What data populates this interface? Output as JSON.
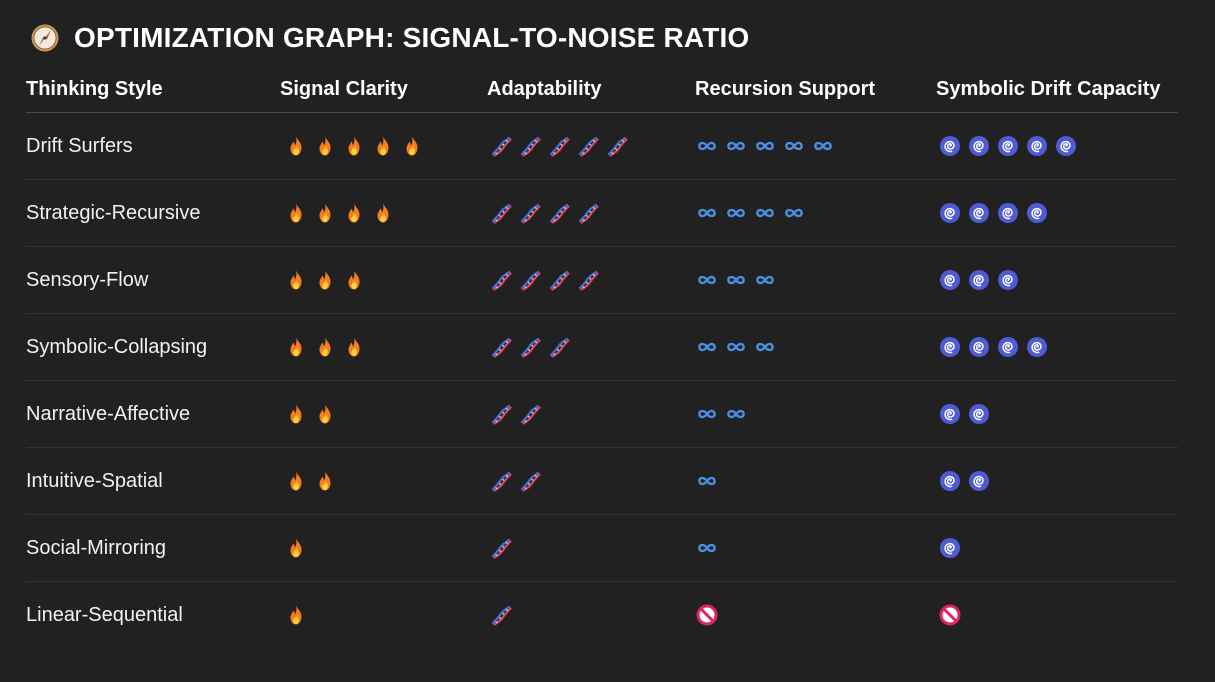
{
  "title": {
    "icon": "compass-icon",
    "text": "OPTIMIZATION GRAPH: SIGNAL-TO-NOISE RATIO"
  },
  "colors": {
    "background": "#212121",
    "text": "#f2f2f2",
    "infinity": "#4a90e2",
    "spiral": "#4f5bd5",
    "fire": "#f57c1f",
    "prohibited": "#e0245e"
  },
  "table": {
    "headers": [
      "Thinking Style",
      "Signal Clarity",
      "Adaptability",
      "Recursion Support",
      "Symbolic Drift Capacity"
    ],
    "icon_names": {
      "signal": "fire-icon",
      "adaptability": "dna-icon",
      "recursion": "infinity-icon",
      "drift": "spiral-icon",
      "none": "prohibited-icon"
    },
    "rows": [
      {
        "style": "Drift Surfers",
        "signal": 5,
        "adaptability": 5,
        "recursion": 5,
        "drift": 5
      },
      {
        "style": "Strategic-Recursive",
        "signal": 4,
        "adaptability": 4,
        "recursion": 4,
        "drift": 4
      },
      {
        "style": "Sensory-Flow",
        "signal": 3,
        "adaptability": 4,
        "recursion": 3,
        "drift": 3
      },
      {
        "style": "Symbolic-Collapsing",
        "signal": 3,
        "adaptability": 3,
        "recursion": 3,
        "drift": 4
      },
      {
        "style": "Narrative-Affective",
        "signal": 2,
        "adaptability": 2,
        "recursion": 2,
        "drift": 2
      },
      {
        "style": "Intuitive-Spatial",
        "signal": 2,
        "adaptability": 2,
        "recursion": 1,
        "drift": 2
      },
      {
        "style": "Social-Mirroring",
        "signal": 1,
        "adaptability": 1,
        "recursion": 1,
        "drift": 1
      },
      {
        "style": "Linear-Sequential",
        "signal": 1,
        "adaptability": 1,
        "recursion": 0,
        "drift": 0
      }
    ]
  }
}
